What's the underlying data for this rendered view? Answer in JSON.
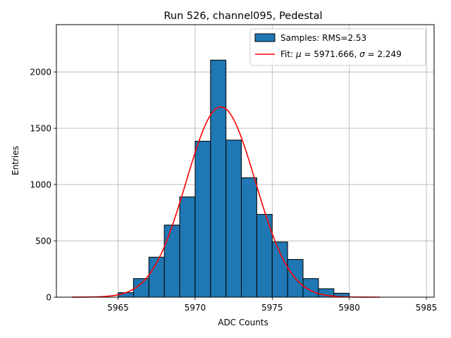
{
  "chart_data": {
    "type": "bar",
    "title": "Run 526, channel095, Pedestal",
    "xlabel": "ADC Counts",
    "ylabel": "Entries",
    "xlim": [
      5961,
      5985.5
    ],
    "ylim": [
      0,
      2420
    ],
    "xticks": [
      5965,
      5970,
      5975,
      5980,
      5985
    ],
    "yticks": [
      0,
      500,
      1000,
      1500,
      2000
    ],
    "grid": true,
    "legend_position": "top-right",
    "histogram": {
      "name": "Samples: RMS=2.53",
      "color": "#1f77b4",
      "bin_edges": [
        5965,
        5966,
        5967,
        5968,
        5969,
        5970,
        5971,
        5972,
        5973,
        5974,
        5975,
        5976,
        5977,
        5978,
        5979,
        5980
      ],
      "counts": [
        40,
        165,
        355,
        640,
        890,
        1385,
        2105,
        1395,
        1060,
        735,
        490,
        335,
        165,
        75,
        35
      ]
    },
    "fit": {
      "name_prefix": "Fit: ",
      "mu_label": "μ",
      "sigma_label": "σ",
      "mu_value": "5971.666",
      "sigma_value": "2.249",
      "color": "#ff0000",
      "mu": 5971.666,
      "sigma": 2.249,
      "amplitude": 1690,
      "x_range": [
        5962,
        5982
      ]
    }
  }
}
